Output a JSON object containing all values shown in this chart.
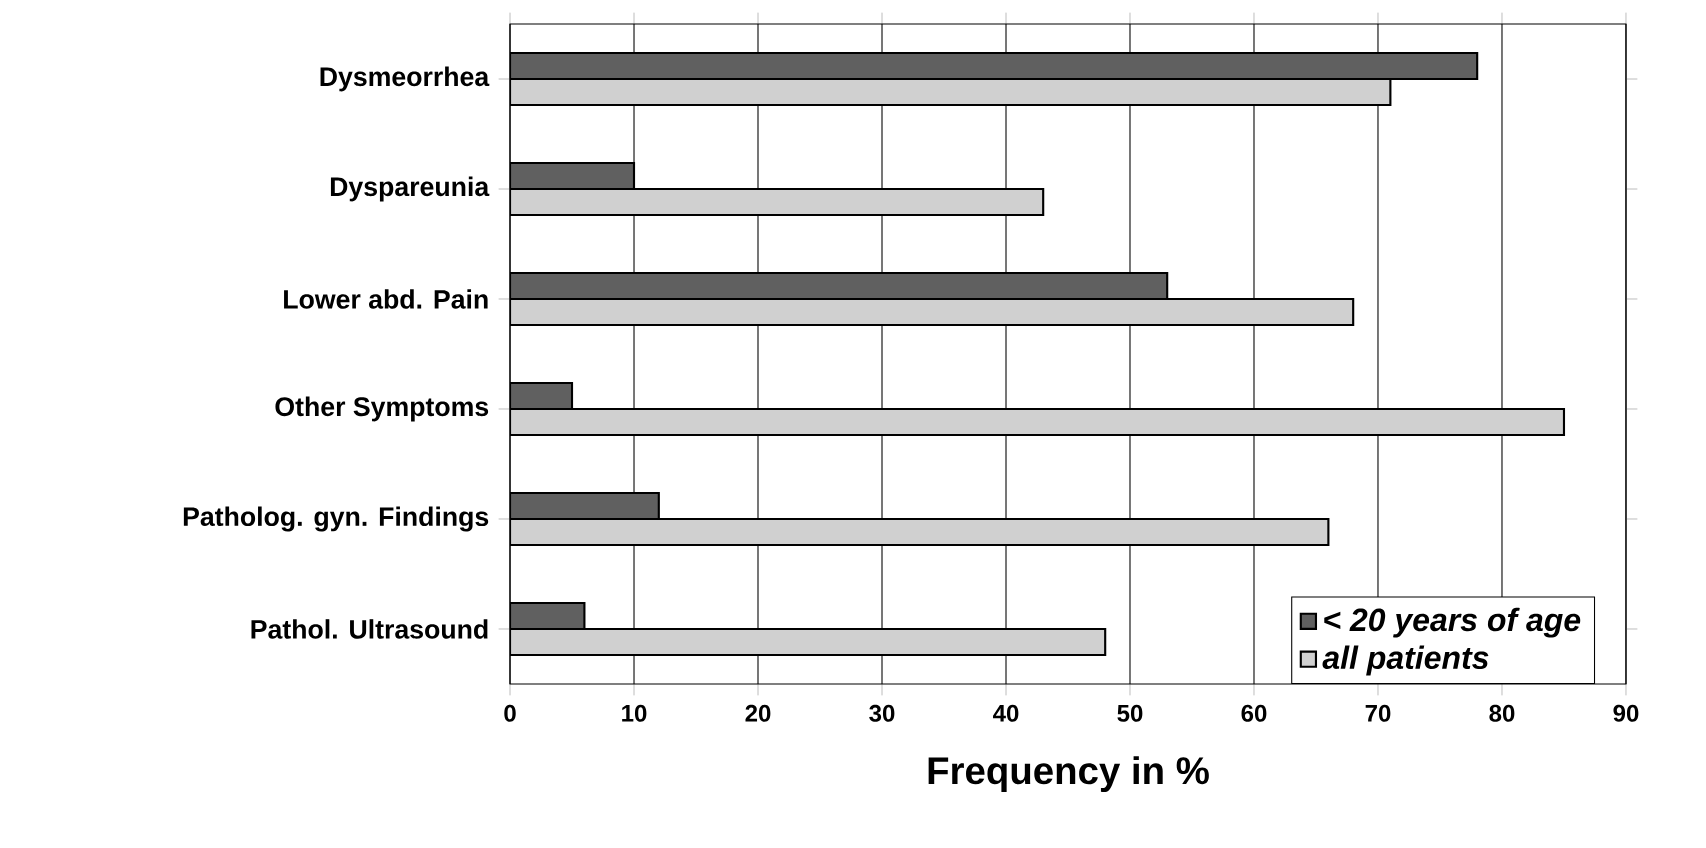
{
  "chart_data": {
    "type": "bar",
    "orientation": "horizontal",
    "xlabel": "Frequency in %",
    "categories": [
      "Dysmeorrhea",
      "Dyspareunia",
      "Lower abd. Pain",
      "Other Symptoms",
      "Patholog. gyn. Findings",
      "Pathol. Ultrasound"
    ],
    "series": [
      {
        "name": "< 20 years of age",
        "color": "#606060",
        "values": [
          78,
          10,
          53,
          5,
          12,
          6
        ]
      },
      {
        "name": "all patients",
        "color": "#d0d0d0",
        "values": [
          71,
          43,
          68,
          85,
          66,
          48
        ]
      }
    ],
    "xlim": [
      0,
      90
    ],
    "xticks": [
      0,
      10,
      20,
      30,
      40,
      50,
      60,
      70,
      80,
      90
    ],
    "grid": "x",
    "legend": "bottom right"
  }
}
